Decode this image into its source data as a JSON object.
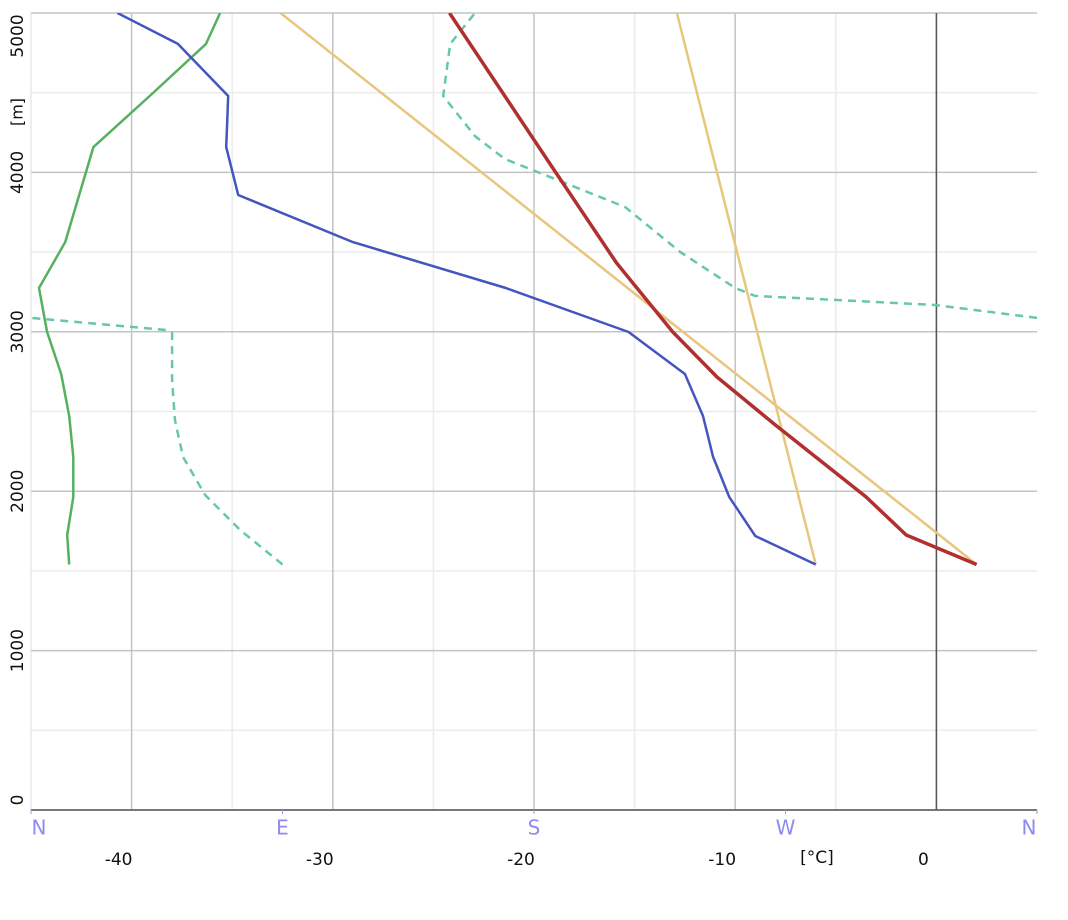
{
  "chart_data": {
    "type": "line",
    "y_label": "[m]",
    "x_label": "[°C]",
    "xlim": [
      -45,
      5
    ],
    "xticks": [
      -40,
      -30,
      -20,
      -10,
      0
    ],
    "x_minor_ticks": [
      -35,
      -25,
      -15,
      -5
    ],
    "ylim": [
      0,
      5000
    ],
    "yticks": [
      0,
      1000,
      2000,
      3000,
      4000,
      5000
    ],
    "y_minor_ticks": [
      500,
      1500,
      2500,
      3500,
      4500
    ],
    "x2lim": [
      0,
      360
    ],
    "x2ticks": [
      {
        "value": 0,
        "label": "N"
      },
      {
        "value": 90,
        "label": "E"
      },
      {
        "value": 180,
        "label": "S"
      },
      {
        "value": 270,
        "label": "W"
      },
      {
        "value": 360,
        "label": "N"
      }
    ],
    "freezing_line": 0,
    "grid": true,
    "series": [
      {
        "color": "#e8c67e",
        "x": [
          2.0,
          -32.6
        ],
        "y": [
          1540,
          5000
        ]
      },
      {
        "color": "#e8c67e",
        "x": [
          -6.0,
          -12.9
        ],
        "y": [
          1540,
          5000
        ]
      },
      {
        "color": "#66c8a8",
        "dashed": true,
        "axis": "x2",
        "x": [
          90,
          74.8,
          62.3,
          54.4,
          51.5,
          50.5,
          50.5,
          48.3,
          0,
          null,
          360,
          323.5,
          259.1,
          252.0,
          232.3,
          212.6,
          189.3,
          169.6,
          158.9,
          147.5,
          150.0,
          158.9
        ],
        "y": [
          1540,
          1757,
          1976,
          2215,
          2447,
          2698,
          2992,
          3011,
          3087,
          null,
          3087,
          3168,
          3225,
          3275,
          3501,
          3783,
          3946,
          4084,
          4228,
          4479,
          4806,
          5000
        ]
      },
      {
        "color": "#55b060",
        "x": [
          -43.1,
          -43.2,
          -42.9,
          -42.9,
          -43.1,
          -43.5,
          -44.2,
          -44.6,
          -43.3,
          -41.9,
          -39.1,
          -36.3,
          -35.6
        ],
        "y": [
          1540,
          1725,
          1964,
          2215,
          2472,
          2735,
          2999,
          3275,
          3563,
          4159,
          4479,
          4806,
          5000
        ]
      },
      {
        "color": "#4455c0",
        "x": [
          -6.0,
          -9.0,
          -10.3,
          -11.1,
          -11.6,
          -12.5,
          -15.3,
          -21.4,
          -29.0,
          -34.7,
          -35.3,
          -35.2,
          -37.7,
          -40.7
        ],
        "y": [
          1540,
          1719,
          1964,
          2215,
          2472,
          2735,
          2999,
          3275,
          3563,
          3858,
          4159,
          4479,
          4806,
          5000
        ]
      },
      {
        "color": "#b03030",
        "width": 3.5,
        "x": [
          2.0,
          -1.5,
          -3.5,
          -8.0,
          -10.9,
          -13.1,
          -15.9,
          -19.0,
          -24.2
        ],
        "y": [
          1540,
          1725,
          1964,
          2415,
          2716,
          2999,
          3432,
          4015,
          5000
        ]
      }
    ]
  }
}
